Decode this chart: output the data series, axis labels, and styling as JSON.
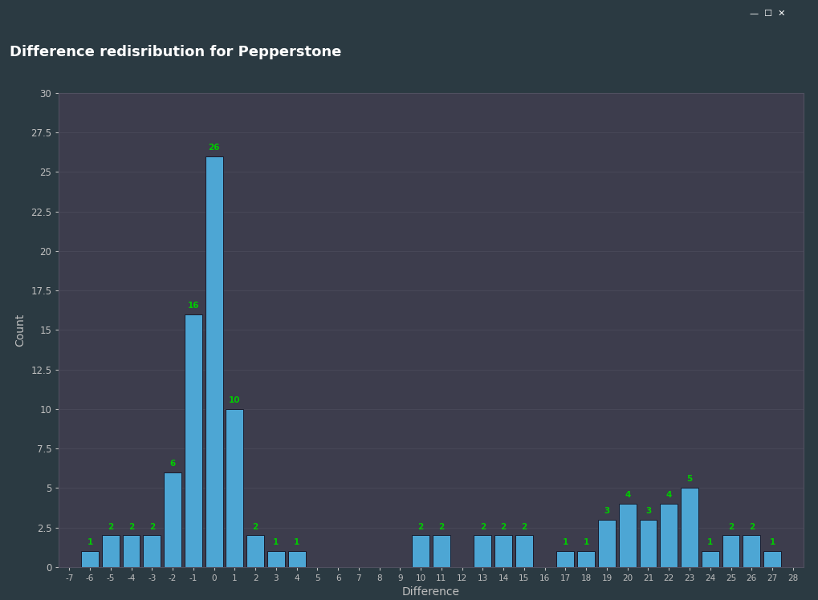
{
  "title": "Difference redisribution for Pepperstone",
  "xlabel": "Difference",
  "ylabel": "Count",
  "bar_color": "#4da6d4",
  "bar_edge_color": "#1a1a2a",
  "label_color": "#00cc00",
  "fig_bg_color": "#2b3a42",
  "title_bar_color": "#2d4450",
  "plot_outer_bg": "#555555",
  "axes_bg_color": "#3d3d4d",
  "text_color": "#c0c0c0",
  "title_text_color": "#ffffff",
  "grid_color": "#505060",
  "values": {
    "-7": 0,
    "-6": 1,
    "-5": 2,
    "-4": 2,
    "-3": 2,
    "-2": 6,
    "-1": 16,
    "0": 26,
    "1": 10,
    "2": 2,
    "3": 1,
    "4": 1,
    "5": 0,
    "6": 0,
    "7": 0,
    "8": 0,
    "9": 0,
    "10": 2,
    "11": 2,
    "12": 0,
    "13": 2,
    "14": 2,
    "15": 2,
    "16": 0,
    "17": 1,
    "18": 1,
    "19": 3,
    "20": 4,
    "21": 3,
    "22": 4,
    "23": 5,
    "24": 1,
    "25": 2,
    "26": 2,
    "27": 1,
    "28": 0
  },
  "ylim": [
    0,
    30
  ],
  "yticks": [
    0,
    2.5,
    5,
    7.5,
    10,
    12.5,
    15,
    17.5,
    20,
    22.5,
    25,
    27.5,
    30
  ],
  "xlim": [
    -7.5,
    28.5
  ]
}
